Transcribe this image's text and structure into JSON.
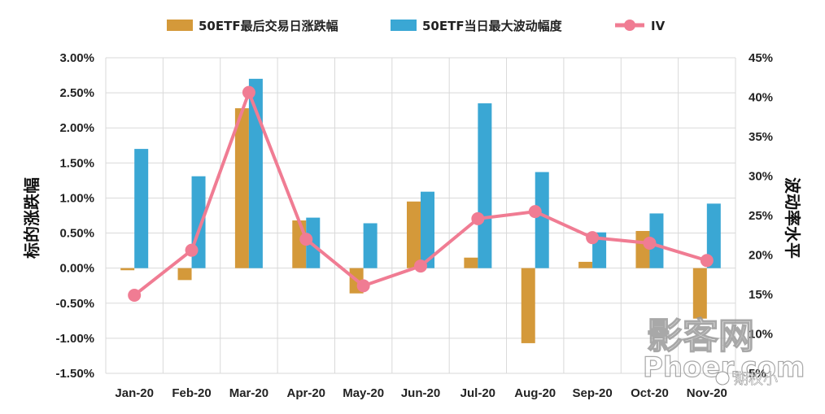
{
  "chart_data": {
    "type": "bar",
    "categories": [
      "Jan-20",
      "Feb-20",
      "Mar-20",
      "Apr-20",
      "May-20",
      "Jun-20",
      "Jul-20",
      "Aug-20",
      "Sep-20",
      "Oct-20",
      "Nov-20"
    ],
    "series": [
      {
        "name": "50ETF最后交易日涨跌幅",
        "kind": "bar",
        "axis": "left",
        "color": "#D4993A",
        "values": [
          -0.03,
          -0.17,
          2.28,
          0.68,
          -0.36,
          0.95,
          0.15,
          -1.07,
          0.09,
          0.53,
          -0.72
        ]
      },
      {
        "name": "50ETF当日最大波动幅度",
        "kind": "bar",
        "axis": "left",
        "color": "#3AA7D4",
        "values": [
          1.7,
          1.31,
          2.7,
          0.72,
          0.64,
          1.09,
          2.35,
          1.37,
          0.51,
          0.78,
          0.92
        ]
      },
      {
        "name": "IV",
        "kind": "line",
        "axis": "right",
        "color": "#F07C93",
        "values": [
          14.9,
          20.6,
          40.6,
          22.0,
          16.1,
          18.6,
          24.6,
          25.5,
          22.2,
          21.5,
          19.3
        ]
      }
    ],
    "y_left": {
      "label": "标的涨跌幅",
      "min": -1.5,
      "max": 3.0,
      "step": 0.5,
      "ticks": [
        "3.00%",
        "2.50%",
        "2.00%",
        "1.50%",
        "1.00%",
        "0.50%",
        "0.00%",
        "-0.50%",
        "-1.00%",
        "-1.50%"
      ]
    },
    "y_right": {
      "label": "波动率水平",
      "min": 5,
      "max": 45,
      "step": 5,
      "ticks": [
        "45%",
        "40%",
        "35%",
        "30%",
        "25%",
        "20%",
        "15%",
        "10%",
        "5%"
      ]
    },
    "grid": true,
    "legend_position": "top"
  },
  "watermark": {
    "big": "影客网",
    "small": "Phoer.com",
    "tag": "期权小"
  }
}
